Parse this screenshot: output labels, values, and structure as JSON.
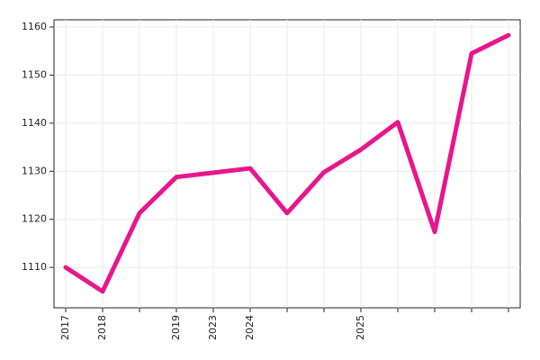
{
  "chart_data": {
    "type": "line",
    "categories": [
      "2017",
      "2018",
      null,
      "2019",
      "2023",
      "2024",
      null,
      null,
      "2025",
      null,
      null,
      null,
      null
    ],
    "values": [
      1110,
      1105,
      1121.3,
      1128.8,
      1129.7,
      1130.6,
      1121.3,
      1129.8,
      1134.5,
      1140.2,
      1117.4,
      1154.5,
      1158.3
    ],
    "color": "#e8168c",
    "ylim": [
      1101.6,
      1161.5
    ],
    "yticks": [
      1110,
      1120,
      1130,
      1140,
      1150,
      1160
    ],
    "grid": true
  }
}
